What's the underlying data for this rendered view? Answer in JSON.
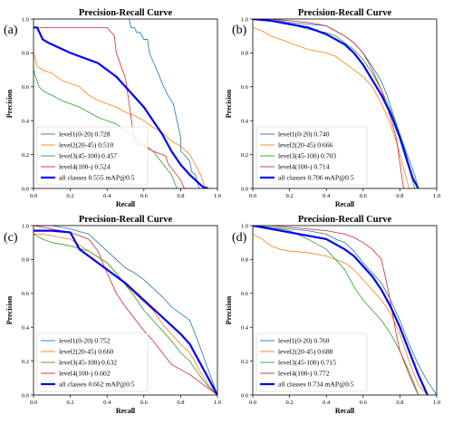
{
  "chart_data": [
    {
      "type": "line",
      "panel_label": "(a)",
      "title": "Precision-Recall Curve",
      "xlabel": "Recall",
      "ylabel": "Precision",
      "xlim": [
        0,
        1
      ],
      "ylim": [
        0,
        1
      ],
      "xticks": [
        "0.0",
        "0.2",
        "0.4",
        "0.6",
        "0.8",
        "1.0"
      ],
      "yticks": [
        "0.0",
        "0.2",
        "0.4",
        "0.6",
        "0.8",
        "1.0"
      ],
      "legend_position": "bottom-left",
      "series": [
        {
          "name": "level1(0-20) 0.728",
          "color": "#1f77b4",
          "bold": false,
          "x": [
            0.0,
            0.52,
            0.53,
            0.55,
            0.56,
            0.58,
            0.6,
            0.62,
            0.63,
            0.65,
            0.67,
            0.7,
            0.73,
            0.76,
            0.78,
            0.8,
            0.8,
            0.82,
            0.85,
            0.86,
            0.88,
            0.9
          ],
          "y": [
            1.0,
            1.0,
            0.95,
            0.95,
            0.92,
            0.92,
            0.88,
            0.88,
            0.8,
            0.75,
            0.7,
            0.62,
            0.55,
            0.5,
            0.4,
            0.3,
            0.22,
            0.2,
            0.16,
            0.1,
            0.08,
            0.0
          ]
        },
        {
          "name": "level2(20-45) 0.510",
          "color": "#ff7f0e",
          "bold": false,
          "x": [
            0.0,
            0.02,
            0.05,
            0.1,
            0.15,
            0.2,
            0.25,
            0.3,
            0.35,
            0.4,
            0.45,
            0.5,
            0.55,
            0.6,
            0.65,
            0.7,
            0.75,
            0.8,
            0.85,
            0.9,
            0.92,
            0.93
          ],
          "y": [
            0.8,
            0.72,
            0.7,
            0.68,
            0.64,
            0.62,
            0.6,
            0.55,
            0.52,
            0.5,
            0.48,
            0.45,
            0.43,
            0.4,
            0.36,
            0.33,
            0.28,
            0.25,
            0.2,
            0.1,
            0.05,
            0.0
          ]
        },
        {
          "name": "level3(45-100) 0.457",
          "color": "#2ca02c",
          "bold": false,
          "x": [
            0.0,
            0.03,
            0.06,
            0.1,
            0.15,
            0.2,
            0.25,
            0.3,
            0.35,
            0.4,
            0.45,
            0.5,
            0.55,
            0.6,
            0.65,
            0.7,
            0.75,
            0.78
          ],
          "y": [
            0.7,
            0.6,
            0.57,
            0.55,
            0.52,
            0.5,
            0.48,
            0.45,
            0.42,
            0.4,
            0.38,
            0.34,
            0.3,
            0.26,
            0.22,
            0.15,
            0.08,
            0.0
          ]
        },
        {
          "name": "level4(100-) 0.524",
          "color": "#d62728",
          "bold": false,
          "x": [
            0.0,
            0.1,
            0.2,
            0.3,
            0.4,
            0.44,
            0.45,
            0.5,
            0.52,
            0.55,
            0.6,
            0.65,
            0.7,
            0.72,
            0.73,
            0.75,
            0.8,
            0.82
          ],
          "y": [
            0.95,
            0.95,
            0.95,
            0.95,
            0.95,
            0.9,
            0.8,
            0.65,
            0.5,
            0.27,
            0.25,
            0.22,
            0.2,
            0.19,
            0.15,
            0.12,
            0.05,
            0.0
          ]
        },
        {
          "name": "all classes 0.555 mAP@0.5",
          "color": "#0000ff",
          "bold": true,
          "x": [
            0.0,
            0.02,
            0.05,
            0.08,
            0.12,
            0.16,
            0.2,
            0.25,
            0.3,
            0.35,
            0.4,
            0.45,
            0.5,
            0.55,
            0.6,
            0.65,
            0.7,
            0.75,
            0.8,
            0.85,
            0.9,
            0.92,
            0.95
          ],
          "y": [
            0.95,
            0.95,
            0.88,
            0.86,
            0.84,
            0.82,
            0.8,
            0.78,
            0.76,
            0.74,
            0.7,
            0.66,
            0.6,
            0.54,
            0.48,
            0.4,
            0.32,
            0.22,
            0.14,
            0.08,
            0.03,
            0.01,
            0.0
          ]
        }
      ]
    },
    {
      "type": "line",
      "panel_label": "(b)",
      "title": "Precision-Recall Curve",
      "xlabel": "Recall",
      "ylabel": "Precision",
      "xlim": [
        0,
        1
      ],
      "ylim": [
        0,
        1
      ],
      "xticks": [
        "0.0",
        "0.2",
        "0.4",
        "0.6",
        "0.8",
        "1.0"
      ],
      "yticks": [
        "0.0",
        "0.2",
        "0.4",
        "0.6",
        "0.8",
        "1.0"
      ],
      "legend_position": "bottom-left",
      "series": [
        {
          "name": "level1(0-20) 0.740",
          "color": "#1f77b4",
          "bold": false,
          "x": [
            0.0,
            0.1,
            0.2,
            0.3,
            0.4,
            0.45,
            0.5,
            0.55,
            0.6,
            0.65,
            0.7,
            0.73,
            0.76,
            0.8,
            0.84,
            0.88,
            0.9
          ],
          "y": [
            1.0,
            1.0,
            0.98,
            0.97,
            0.96,
            0.93,
            0.9,
            0.86,
            0.8,
            0.72,
            0.63,
            0.55,
            0.45,
            0.32,
            0.2,
            0.08,
            0.0
          ]
        },
        {
          "name": "level2(20-45) 0.666",
          "color": "#ff7f0e",
          "bold": false,
          "x": [
            0.0,
            0.05,
            0.1,
            0.15,
            0.2,
            0.25,
            0.3,
            0.4,
            0.45,
            0.5,
            0.55,
            0.6,
            0.65,
            0.7,
            0.74,
            0.78,
            0.82,
            0.85
          ],
          "y": [
            0.95,
            0.93,
            0.9,
            0.88,
            0.86,
            0.84,
            0.82,
            0.8,
            0.78,
            0.74,
            0.7,
            0.66,
            0.6,
            0.5,
            0.4,
            0.28,
            0.12,
            0.0
          ]
        },
        {
          "name": "level3(45-100) 0.703",
          "color": "#2ca02c",
          "bold": false,
          "x": [
            0.0,
            0.1,
            0.2,
            0.3,
            0.4,
            0.45,
            0.5,
            0.55,
            0.6,
            0.65,
            0.7,
            0.75,
            0.8,
            0.84,
            0.86,
            0.88
          ],
          "y": [
            1.0,
            0.99,
            0.97,
            0.94,
            0.92,
            0.9,
            0.86,
            0.82,
            0.76,
            0.68,
            0.58,
            0.46,
            0.32,
            0.18,
            0.08,
            0.0
          ]
        },
        {
          "name": "level4(100-) 0.714",
          "color": "#d62728",
          "bold": false,
          "x": [
            0.0,
            0.1,
            0.2,
            0.3,
            0.35,
            0.4,
            0.45,
            0.5,
            0.55,
            0.6,
            0.65,
            0.7,
            0.74,
            0.78,
            0.8,
            0.82
          ],
          "y": [
            1.0,
            1.0,
            0.99,
            0.98,
            0.97,
            0.96,
            0.93,
            0.9,
            0.86,
            0.8,
            0.7,
            0.58,
            0.45,
            0.3,
            0.15,
            0.0
          ]
        },
        {
          "name": "all classes 0.706 mAP@0.5",
          "color": "#0000ff",
          "bold": true,
          "x": [
            0.0,
            0.1,
            0.2,
            0.3,
            0.35,
            0.4,
            0.45,
            0.5,
            0.55,
            0.6,
            0.65,
            0.7,
            0.75,
            0.8,
            0.84,
            0.87,
            0.9
          ],
          "y": [
            1.0,
            0.99,
            0.97,
            0.95,
            0.93,
            0.91,
            0.88,
            0.85,
            0.8,
            0.73,
            0.64,
            0.55,
            0.44,
            0.3,
            0.16,
            0.06,
            0.0
          ]
        }
      ]
    },
    {
      "type": "line",
      "panel_label": "(c)",
      "title": "Precision-Recall Curve",
      "xlabel": "Recall",
      "ylabel": "Precision",
      "xlim": [
        0,
        1
      ],
      "ylim": [
        0,
        1
      ],
      "xticks": [
        "0.0",
        "0.2",
        "0.4",
        "0.6",
        "0.8",
        "1.0"
      ],
      "yticks": [
        "0.0",
        "0.2",
        "0.4",
        "0.6",
        "0.8",
        "1.0"
      ],
      "legend_position": "bottom-left",
      "series": [
        {
          "name": "level1(0-20) 0.752",
          "color": "#1f77b4",
          "bold": false,
          "x": [
            0.0,
            0.1,
            0.2,
            0.3,
            0.35,
            0.4,
            0.45,
            0.5,
            0.55,
            0.6,
            0.65,
            0.7,
            0.75,
            0.8,
            0.85,
            0.9,
            0.95,
            1.0
          ],
          "y": [
            1.0,
            1.0,
            0.98,
            0.95,
            0.9,
            0.85,
            0.8,
            0.75,
            0.72,
            0.68,
            0.63,
            0.58,
            0.52,
            0.48,
            0.44,
            0.3,
            0.15,
            0.0
          ]
        },
        {
          "name": "level2(20-45) 0.660",
          "color": "#ff7f0e",
          "bold": false,
          "x": [
            0.0,
            0.05,
            0.1,
            0.15,
            0.2,
            0.3,
            0.4,
            0.45,
            0.5,
            0.55,
            0.6,
            0.65,
            0.7,
            0.75,
            0.8,
            0.85,
            0.9,
            0.95,
            1.0
          ],
          "y": [
            0.95,
            0.95,
            0.94,
            0.93,
            0.92,
            0.85,
            0.78,
            0.72,
            0.65,
            0.6,
            0.55,
            0.5,
            0.42,
            0.36,
            0.3,
            0.25,
            0.15,
            0.06,
            0.0
          ]
        },
        {
          "name": "level3(45-100) 0.632",
          "color": "#2ca02c",
          "bold": false,
          "x": [
            0.0,
            0.05,
            0.1,
            0.2,
            0.3,
            0.4,
            0.45,
            0.5,
            0.55,
            0.6,
            0.65,
            0.7,
            0.75,
            0.8,
            0.85,
            0.9,
            0.95,
            1.0
          ],
          "y": [
            0.95,
            0.92,
            0.9,
            0.88,
            0.85,
            0.78,
            0.72,
            0.65,
            0.58,
            0.5,
            0.44,
            0.38,
            0.32,
            0.25,
            0.2,
            0.12,
            0.05,
            0.0
          ]
        },
        {
          "name": "level4(100-) 0.602",
          "color": "#d62728",
          "bold": false,
          "x": [
            0.0,
            0.1,
            0.2,
            0.3,
            0.35,
            0.4,
            0.45,
            0.5,
            0.55,
            0.6,
            0.65,
            0.7,
            0.75,
            0.8,
            0.85,
            0.9,
            0.95,
            1.0
          ],
          "y": [
            1.0,
            0.98,
            0.96,
            0.92,
            0.85,
            0.72,
            0.6,
            0.52,
            0.45,
            0.38,
            0.32,
            0.25,
            0.18,
            0.15,
            0.12,
            0.08,
            0.04,
            0.0
          ]
        },
        {
          "name": "all classes 0.662 mAP@0.5",
          "color": "#0000ff",
          "bold": true,
          "x": [
            0.0,
            0.05,
            0.1,
            0.2,
            0.25,
            0.3,
            0.35,
            0.4,
            0.45,
            0.5,
            0.55,
            0.6,
            0.65,
            0.7,
            0.75,
            0.8,
            0.85,
            0.9,
            0.95,
            1.0
          ],
          "y": [
            0.97,
            0.97,
            0.97,
            0.96,
            0.86,
            0.82,
            0.78,
            0.74,
            0.7,
            0.66,
            0.61,
            0.56,
            0.51,
            0.46,
            0.41,
            0.36,
            0.3,
            0.2,
            0.1,
            0.0
          ]
        }
      ]
    },
    {
      "type": "line",
      "panel_label": "(d)",
      "title": "Precision-Recall Curve",
      "xlabel": "Recall",
      "ylabel": "Precision",
      "xlim": [
        0,
        1
      ],
      "ylim": [
        0,
        1
      ],
      "xticks": [
        "0.0",
        "0.2",
        "0.4",
        "0.6",
        "0.8",
        "1.0"
      ],
      "yticks": [
        "0.0",
        "0.2",
        "0.4",
        "0.6",
        "0.8",
        "1.0"
      ],
      "legend_position": "bottom-left",
      "series": [
        {
          "name": "level1(0-20) 0.760",
          "color": "#1f77b4",
          "bold": false,
          "x": [
            0.0,
            0.1,
            0.2,
            0.3,
            0.4,
            0.45,
            0.5,
            0.55,
            0.6,
            0.65,
            0.7,
            0.75,
            0.8,
            0.85,
            0.9,
            0.95,
            1.0
          ],
          "y": [
            1.0,
            0.99,
            0.98,
            0.97,
            0.95,
            0.92,
            0.9,
            0.85,
            0.78,
            0.72,
            0.66,
            0.56,
            0.44,
            0.3,
            0.18,
            0.08,
            0.0
          ]
        },
        {
          "name": "level2(20-45) 0.688",
          "color": "#ff7f0e",
          "bold": false,
          "x": [
            0.0,
            0.05,
            0.1,
            0.15,
            0.2,
            0.3,
            0.4,
            0.5,
            0.55,
            0.6,
            0.65,
            0.7,
            0.75,
            0.8,
            0.85,
            0.9,
            0.95
          ],
          "y": [
            0.95,
            0.92,
            0.88,
            0.86,
            0.85,
            0.84,
            0.82,
            0.78,
            0.74,
            0.68,
            0.62,
            0.56,
            0.48,
            0.36,
            0.2,
            0.06,
            0.0
          ]
        },
        {
          "name": "level3(45-100) 0.715",
          "color": "#2ca02c",
          "bold": false,
          "x": [
            0.0,
            0.1,
            0.2,
            0.3,
            0.4,
            0.45,
            0.5,
            0.55,
            0.6,
            0.65,
            0.7,
            0.75,
            0.8,
            0.85,
            0.88,
            0.9
          ],
          "y": [
            1.0,
            0.99,
            0.97,
            0.92,
            0.86,
            0.8,
            0.74,
            0.64,
            0.56,
            0.5,
            0.44,
            0.36,
            0.26,
            0.14,
            0.06,
            0.0
          ]
        },
        {
          "name": "level4(100-) 0.772",
          "color": "#d62728",
          "bold": false,
          "x": [
            0.0,
            0.1,
            0.2,
            0.3,
            0.4,
            0.5,
            0.55,
            0.6,
            0.65,
            0.7,
            0.72,
            0.74,
            0.76,
            0.78,
            0.8,
            0.85,
            0.9
          ],
          "y": [
            1.0,
            1.0,
            0.99,
            0.98,
            0.97,
            0.95,
            0.93,
            0.9,
            0.86,
            0.8,
            0.7,
            0.6,
            0.48,
            0.36,
            0.26,
            0.12,
            0.0
          ]
        },
        {
          "name": "all classes 0.734 mAP@0.5",
          "color": "#0000ff",
          "bold": true,
          "x": [
            0.0,
            0.1,
            0.2,
            0.3,
            0.4,
            0.45,
            0.5,
            0.55,
            0.6,
            0.65,
            0.7,
            0.75,
            0.8,
            0.85,
            0.9,
            0.95
          ],
          "y": [
            1.0,
            0.98,
            0.96,
            0.94,
            0.92,
            0.89,
            0.86,
            0.82,
            0.76,
            0.7,
            0.62,
            0.52,
            0.4,
            0.26,
            0.12,
            0.0
          ]
        }
      ]
    }
  ]
}
